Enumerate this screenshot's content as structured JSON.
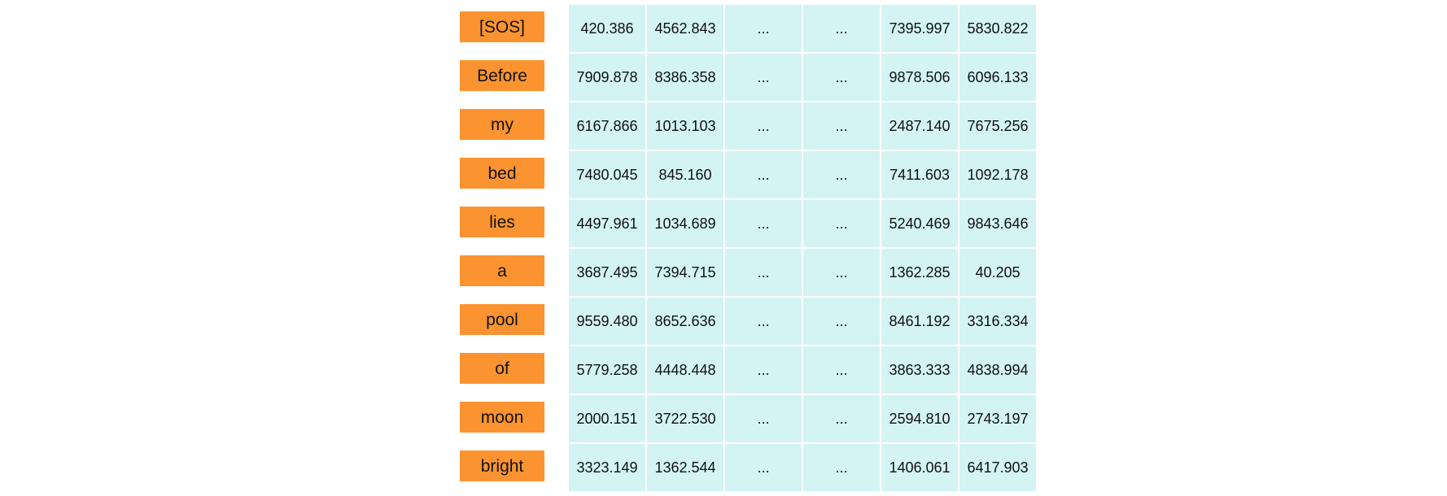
{
  "colors": {
    "token_bg": "#fb9430",
    "cell_bg": "#d3f4f2",
    "text": "#111111"
  },
  "rows": [
    {
      "token": "[SOS]",
      "cells": [
        "420.386",
        "4562.843",
        "...",
        "...",
        "7395.997",
        "5830.822"
      ]
    },
    {
      "token": "Before",
      "cells": [
        "7909.878",
        "8386.358",
        "...",
        "...",
        "9878.506",
        "6096.133"
      ]
    },
    {
      "token": "my",
      "cells": [
        "6167.866",
        "1013.103",
        "...",
        "...",
        "2487.140",
        "7675.256"
      ]
    },
    {
      "token": "bed",
      "cells": [
        "7480.045",
        "845.160",
        "...",
        "...",
        "7411.603",
        "1092.178"
      ]
    },
    {
      "token": "lies",
      "cells": [
        "4497.961",
        "1034.689",
        "...",
        "...",
        "5240.469",
        "9843.646"
      ]
    },
    {
      "token": "a",
      "cells": [
        "3687.495",
        "7394.715",
        "...",
        "...",
        "1362.285",
        "40.205"
      ]
    },
    {
      "token": "pool",
      "cells": [
        "9559.480",
        "8652.636",
        "...",
        "...",
        "8461.192",
        "3316.334"
      ]
    },
    {
      "token": "of",
      "cells": [
        "5779.258",
        "4448.448",
        "...",
        "...",
        "3863.333",
        "4838.994"
      ]
    },
    {
      "token": "moon",
      "cells": [
        "2000.151",
        "3722.530",
        "...",
        "...",
        "2594.810",
        "2743.197"
      ]
    },
    {
      "token": "bright",
      "cells": [
        "3323.149",
        "1362.544",
        "...",
        "...",
        "1406.061",
        "6417.903"
      ]
    }
  ]
}
